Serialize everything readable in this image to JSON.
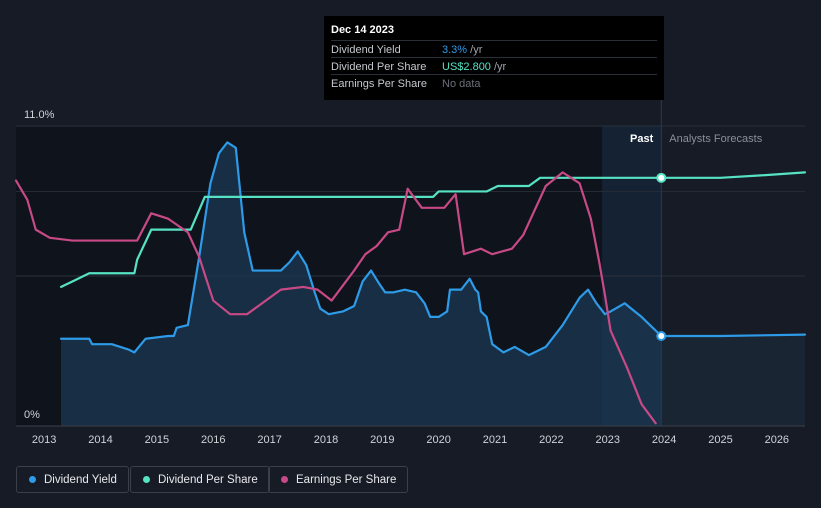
{
  "tooltip": {
    "date": "Dec 14 2023",
    "rows": [
      {
        "label": "Dividend Yield",
        "value": "3.3%",
        "unit": " /yr",
        "color": "#2e9be8"
      },
      {
        "label": "Dividend Per Share",
        "value": "US$2.800",
        "unit": " /yr",
        "color": "#56e3c4"
      },
      {
        "label": "Earnings Per Share",
        "value": "No data",
        "unit": "",
        "color": "#6b6f78"
      }
    ]
  },
  "labels": {
    "past": "Past",
    "forecast": "Analysts Forecasts"
  },
  "legend": [
    {
      "label": "Dividend Yield",
      "color": "#2e9be8"
    },
    {
      "label": "Dividend Per Share",
      "color": "#56e3c4"
    },
    {
      "label": "Earnings Per Share",
      "color": "#c74a86"
    }
  ],
  "chart_data": {
    "type": "line",
    "y_ticks": [
      "11.0%",
      "0%"
    ],
    "ylim_percent": [
      0,
      11.0
    ],
    "x_ticks": [
      "2013",
      "2014",
      "2015",
      "2016",
      "2017",
      "2018",
      "2019",
      "2020",
      "2021",
      "2022",
      "2023",
      "2024",
      "2025",
      "2026"
    ],
    "xlim": [
      2012.5,
      2026.5
    ],
    "past_end": 2023.95,
    "shaded_region": [
      2022.9,
      2023.95
    ],
    "series": [
      {
        "name": "Dividend Yield",
        "color": "#2e9be8",
        "unit": "%",
        "points": [
          [
            2013.3,
            3.2
          ],
          [
            2013.8,
            3.2
          ],
          [
            2013.85,
            3.0
          ],
          [
            2014.2,
            3.0
          ],
          [
            2014.5,
            2.8
          ],
          [
            2014.6,
            2.7
          ],
          [
            2014.8,
            3.2
          ],
          [
            2015.2,
            3.3
          ],
          [
            2015.3,
            3.3
          ],
          [
            2015.35,
            3.6
          ],
          [
            2015.55,
            3.7
          ],
          [
            2015.75,
            6.2
          ],
          [
            2015.95,
            8.9
          ],
          [
            2016.1,
            10.0
          ],
          [
            2016.25,
            10.4
          ],
          [
            2016.4,
            10.2
          ],
          [
            2016.55,
            7.1
          ],
          [
            2016.7,
            5.7
          ],
          [
            2017.2,
            5.7
          ],
          [
            2017.35,
            6.0
          ],
          [
            2017.5,
            6.4
          ],
          [
            2017.65,
            5.9
          ],
          [
            2017.8,
            4.9
          ],
          [
            2017.9,
            4.3
          ],
          [
            2018.05,
            4.1
          ],
          [
            2018.3,
            4.2
          ],
          [
            2018.5,
            4.4
          ],
          [
            2018.65,
            5.3
          ],
          [
            2018.8,
            5.7
          ],
          [
            2018.95,
            5.2
          ],
          [
            2019.05,
            4.9
          ],
          [
            2019.2,
            4.9
          ],
          [
            2019.4,
            5.0
          ],
          [
            2019.6,
            4.9
          ],
          [
            2019.75,
            4.5
          ],
          [
            2019.85,
            4.0
          ],
          [
            2020.0,
            4.0
          ],
          [
            2020.15,
            4.2
          ],
          [
            2020.2,
            5.0
          ],
          [
            2020.4,
            5.0
          ],
          [
            2020.55,
            5.4
          ],
          [
            2020.65,
            5.0
          ],
          [
            2020.7,
            4.9
          ],
          [
            2020.75,
            4.2
          ],
          [
            2020.85,
            4.0
          ],
          [
            2020.95,
            3.0
          ],
          [
            2021.15,
            2.7
          ],
          [
            2021.35,
            2.9
          ],
          [
            2021.6,
            2.6
          ],
          [
            2021.9,
            2.9
          ],
          [
            2022.2,
            3.7
          ],
          [
            2022.5,
            4.7
          ],
          [
            2022.65,
            5.0
          ],
          [
            2022.8,
            4.5
          ],
          [
            2022.95,
            4.1
          ],
          [
            2023.05,
            4.2
          ],
          [
            2023.3,
            4.5
          ],
          [
            2023.6,
            4.0
          ],
          [
            2023.95,
            3.3
          ]
        ]
      },
      {
        "name": "Dividend Per Share",
        "color": "#56e3c4",
        "points": [
          [
            2013.3,
            5.1
          ],
          [
            2013.5,
            5.3
          ],
          [
            2013.8,
            5.6
          ],
          [
            2014.6,
            5.6
          ],
          [
            2014.65,
            6.1
          ],
          [
            2014.9,
            7.2
          ],
          [
            2015.6,
            7.2
          ],
          [
            2015.85,
            8.4
          ],
          [
            2016.5,
            8.4
          ],
          [
            2019.9,
            8.4
          ],
          [
            2020.0,
            8.6
          ],
          [
            2020.85,
            8.6
          ],
          [
            2021.05,
            8.8
          ],
          [
            2021.6,
            8.8
          ],
          [
            2021.8,
            9.1
          ],
          [
            2023.95,
            9.1
          ],
          [
            2025.0,
            9.1
          ],
          [
            2025.8,
            9.2
          ],
          [
            2026.5,
            9.3
          ]
        ]
      },
      {
        "name": "Earnings Per Share",
        "color": "#c74a86",
        "points": [
          [
            2012.5,
            9.0
          ],
          [
            2012.7,
            8.3
          ],
          [
            2012.85,
            7.2
          ],
          [
            2013.1,
            6.9
          ],
          [
            2013.5,
            6.8
          ],
          [
            2014.0,
            6.8
          ],
          [
            2014.65,
            6.8
          ],
          [
            2014.9,
            7.8
          ],
          [
            2015.2,
            7.6
          ],
          [
            2015.55,
            7.1
          ],
          [
            2015.75,
            6.2
          ],
          [
            2016.0,
            4.6
          ],
          [
            2016.3,
            4.1
          ],
          [
            2016.6,
            4.1
          ],
          [
            2016.8,
            4.4
          ],
          [
            2017.2,
            5.0
          ],
          [
            2017.6,
            5.1
          ],
          [
            2017.85,
            5.0
          ],
          [
            2018.1,
            4.6
          ],
          [
            2018.5,
            5.7
          ],
          [
            2018.7,
            6.3
          ],
          [
            2018.9,
            6.6
          ],
          [
            2019.1,
            7.1
          ],
          [
            2019.3,
            7.2
          ],
          [
            2019.45,
            8.7
          ],
          [
            2019.7,
            8.0
          ],
          [
            2020.1,
            8.0
          ],
          [
            2020.3,
            8.5
          ],
          [
            2020.45,
            6.3
          ],
          [
            2020.75,
            6.5
          ],
          [
            2020.95,
            6.3
          ],
          [
            2021.3,
            6.5
          ],
          [
            2021.5,
            7.0
          ],
          [
            2021.9,
            8.8
          ],
          [
            2022.2,
            9.3
          ],
          [
            2022.5,
            8.9
          ],
          [
            2022.7,
            7.6
          ],
          [
            2022.85,
            6.0
          ],
          [
            2022.95,
            4.8
          ],
          [
            2023.05,
            3.5
          ],
          [
            2023.35,
            2.1
          ],
          [
            2023.6,
            0.8
          ],
          [
            2023.85,
            0.1
          ]
        ]
      },
      {
        "name": "Dividend Yield Forecast",
        "color": "#2e9be8",
        "points": [
          [
            2023.95,
            3.3
          ],
          [
            2025.0,
            3.3
          ],
          [
            2026.5,
            3.35
          ]
        ]
      }
    ]
  }
}
